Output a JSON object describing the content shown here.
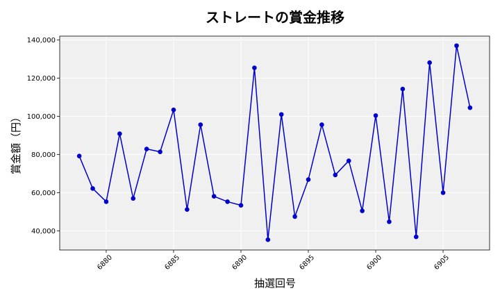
{
  "chart_data": {
    "type": "line",
    "title": "ストレートの賞金推移",
    "xlabel": "抽選回号",
    "ylabel": "賞金額（円）",
    "x": [
      6878,
      6879,
      6880,
      6881,
      6882,
      6883,
      6884,
      6885,
      6886,
      6887,
      6888,
      6889,
      6890,
      6891,
      6892,
      6893,
      6894,
      6895,
      6896,
      6897,
      6898,
      6899,
      6900,
      6901,
      6902,
      6903,
      6904,
      6905,
      6906,
      6907
    ],
    "series": [
      {
        "values": [
          79200,
          62200,
          55300,
          90900,
          57000,
          82900,
          81400,
          103400,
          51200,
          95600,
          58100,
          55300,
          53400,
          125400,
          35400,
          101000,
          47500,
          66900,
          95600,
          69300,
          76700,
          50500,
          100400,
          44800,
          114300,
          36900,
          128100,
          60000,
          137000,
          104500
        ],
        "color": "#0000cc"
      }
    ],
    "xlim": [
      6876.55,
      6908.45
    ],
    "ylim": [
      30000,
      142000
    ],
    "x_ticks": [
      6880,
      6885,
      6890,
      6895,
      6900,
      6905
    ],
    "x_tick_labels": [
      "6880",
      "6885",
      "6890",
      "6895",
      "6900",
      "6905"
    ],
    "y_ticks": [
      40000,
      60000,
      80000,
      100000,
      120000,
      140000
    ],
    "y_tick_labels": [
      "40,000",
      "60,000",
      "80,000",
      "100,000",
      "120,000",
      "140,000"
    ],
    "grid": true,
    "background": "#f0f0f0"
  }
}
